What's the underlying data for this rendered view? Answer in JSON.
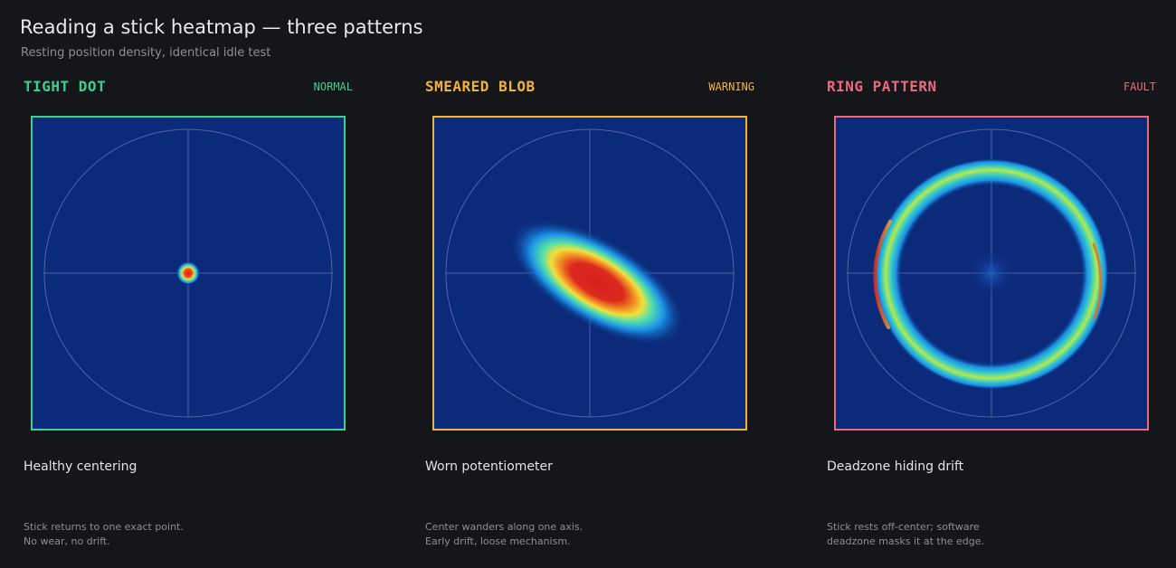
{
  "header": {
    "title": "Reading a stick heatmap — three patterns",
    "subtitle": "Resting position density, identical idle test"
  },
  "panels": [
    {
      "name": "TIGHT DOT",
      "status": "NORMAL",
      "accent": "#3ecf8e",
      "pattern": "dot",
      "caption": "Healthy centering",
      "description": [
        "Stick returns to one exact point.",
        "No wear, no drift."
      ]
    },
    {
      "name": "SMEARED BLOB",
      "status": "WARNING",
      "accent": "#f2b33d",
      "pattern": "blob",
      "caption": "Worn potentiometer",
      "description": [
        "Center wanders along one axis.",
        "Early drift, loose mechanism."
      ]
    },
    {
      "name": "RING PATTERN",
      "status": "FAULT",
      "accent": "#ea6a7c",
      "pattern": "ring",
      "caption": "Deadzone hiding drift",
      "description": [
        "Stick rests off-center; software",
        "deadzone masks it at the edge."
      ]
    }
  ],
  "colors": {
    "heatmap_background": "#0b2a7a",
    "guide_lines": "#7f8fbf"
  }
}
